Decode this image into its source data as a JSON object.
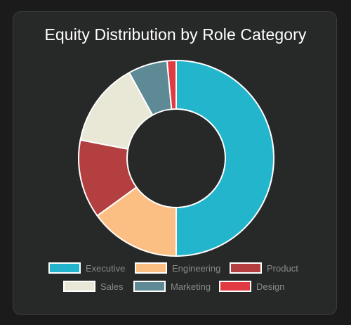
{
  "chart_data": {
    "type": "pie",
    "donut": true,
    "title": "Equity Distribution by Role Category",
    "categories": [
      "Executive",
      "Engineering",
      "Product",
      "Sales",
      "Marketing",
      "Design"
    ],
    "values": [
      50,
      15,
      13,
      14,
      6.5,
      1.5
    ],
    "colors": [
      "#22b5cc",
      "#fbbf84",
      "#b33f40",
      "#e9e7d6",
      "#5d8a94",
      "#e03b42"
    ],
    "slice_border_color": "#ffffff",
    "legend_position": "bottom"
  }
}
